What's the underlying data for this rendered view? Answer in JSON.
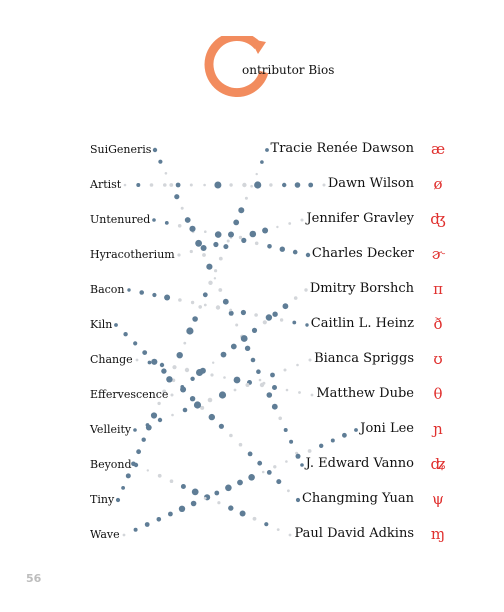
{
  "header": {
    "title": "ontributor Bios",
    "logo_color": "#f28c5e"
  },
  "left_words": [
    "SuiGeneris",
    "Artist",
    "Untenured",
    "Hyracotherium",
    "Bacon",
    "Kiln",
    "Change",
    "Effervescence",
    "Velleity",
    "Beyond",
    "Tiny",
    "Wave"
  ],
  "contributors": [
    {
      "name": "Tracie Renée Dawson",
      "glyph": "æ"
    },
    {
      "name": "Dawn Wilson",
      "glyph": "ø"
    },
    {
      "name": "Jennifer Gravley",
      "glyph": "ʤ"
    },
    {
      "name": "Charles Decker",
      "glyph": "ɚ"
    },
    {
      "name": "Dmitry Borshch",
      "glyph": "π"
    },
    {
      "name": "Caitlin L. Heinz",
      "glyph": "ð"
    },
    {
      "name": "Bianca Spriggs",
      "glyph": "ʊ"
    },
    {
      "name": "Matthew Dube",
      "glyph": "θ"
    },
    {
      "name": "Joni Lee",
      "glyph": "ɲ"
    },
    {
      "name": "J. Edward Vanno",
      "glyph": "ʥ"
    },
    {
      "name": "Changming Yuan",
      "glyph": "ψ"
    },
    {
      "name": "Paul David Adkins",
      "glyph": "ɱ"
    }
  ],
  "connections": [
    9,
    1,
    3,
    2,
    5,
    10,
    7,
    4,
    6,
    11,
    0,
    8
  ],
  "colors": {
    "dot_dark": "#5f7d96",
    "dot_light": "#d3d6da",
    "glyph": "#e0312f"
  },
  "page_number": "56"
}
